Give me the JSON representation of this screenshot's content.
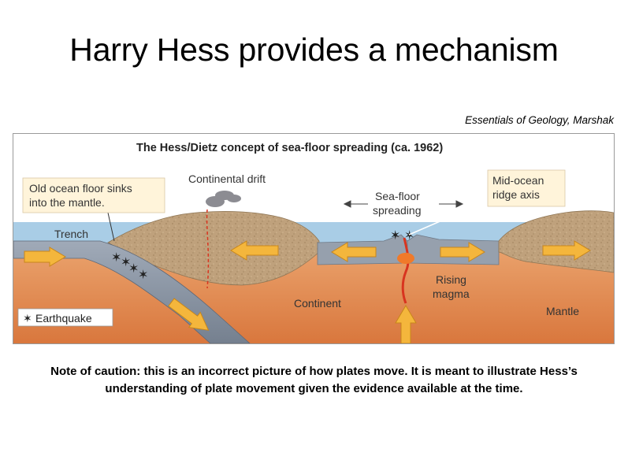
{
  "slide": {
    "title": "Harry Hess provides a mechanism",
    "credit": "Essentials of Geology, Marshak",
    "caution": "Note of caution: this is an incorrect picture of how plates move. It is meant to illustrate Hess’s understanding of plate movement given the evidence available at the time."
  },
  "diagram": {
    "title": "The Hess/Dietz concept of sea-floor spreading (ca. 1962)",
    "callout_old_floor": [
      "Old ocean floor sinks",
      "into the mantle."
    ],
    "continental_drift": "Continental drift",
    "sea_floor_spreading": [
      "Sea-floor",
      "spreading"
    ],
    "callout_ridge": [
      "Mid-ocean",
      "ridge axis"
    ],
    "trench": "Trench",
    "rising_magma": [
      "Rising",
      "magma"
    ],
    "continent": "Continent",
    "mantle": "Mantle",
    "legend_earthquake": "Earthquake",
    "colors": {
      "ocean": "#a9cde6",
      "mantle": "#df8a50",
      "continent": "#bfa17c",
      "slab": "#8894a4",
      "arrow": "#f4b63c",
      "magma": "#d8341f",
      "callout": "#fff4da"
    }
  }
}
